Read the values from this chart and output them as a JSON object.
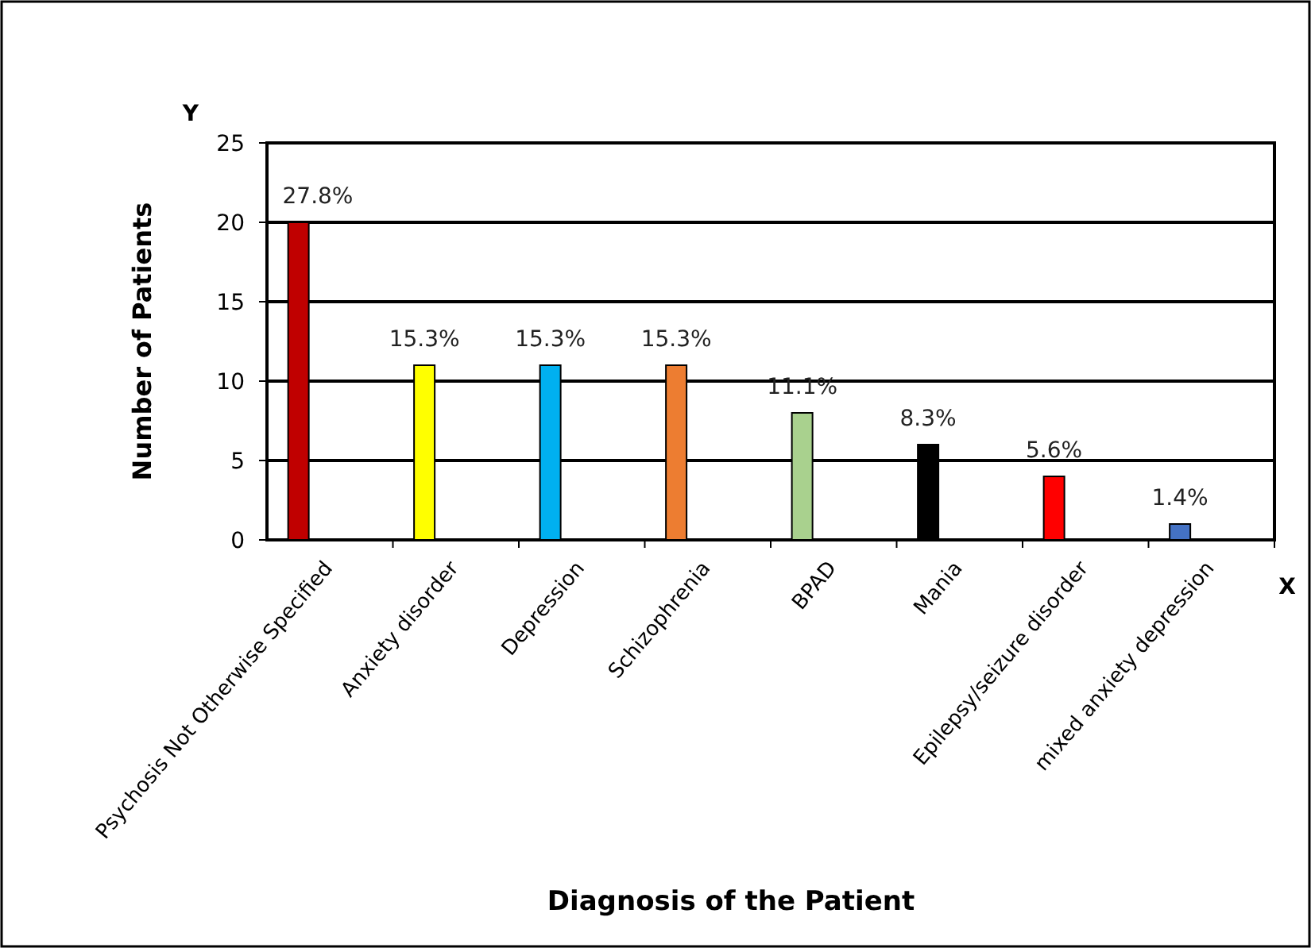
{
  "chart_data": {
    "type": "bar",
    "xlabel": "Diagnosis of the Patient",
    "ylabel": "Number of Patients",
    "annotations": [
      "Y",
      "X",
      "27.8%",
      "15.3%",
      "15.3%",
      "15.3%",
      "11.1%",
      "8.3%",
      "5.6%",
      "1.4%"
    ],
    "categories": [
      "Psychosis Not Otherwise Specified",
      "Anxiety disorder",
      "Depression",
      "Schizophrenia",
      "BPAD",
      "Mania",
      "Epilepsy/seizure disorder",
      "mixed anxiety depression"
    ],
    "values": [
      20,
      11,
      11,
      11,
      8,
      6,
      4,
      1
    ],
    "colors": [
      "#c00000",
      "#ffff00",
      "#00b0f0",
      "#ed7d31",
      "#a9d18e",
      "#000000",
      "#ff0000",
      "#4472c4"
    ],
    "ylim": [
      0,
      25
    ],
    "yticks": [
      0,
      5,
      10,
      15,
      20,
      25
    ],
    "grid": "y"
  }
}
